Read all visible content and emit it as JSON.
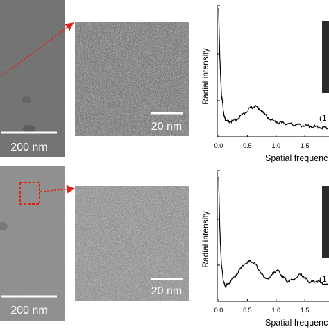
{
  "panels": [
    {
      "id": "top",
      "overview_scale": "200 nm",
      "zoom_scale": "20 nm",
      "plot": {
        "ylabel": "Radial intensity",
        "xlabel": "Spatial frequenc",
        "annotation": "(1"
      }
    },
    {
      "id": "bottom",
      "overview_scale": "200 nm",
      "zoom_scale": "20 nm",
      "plot": {
        "ylabel": "Radial intensity",
        "xlabel": "Spatial frequenc",
        "annotation": "(1"
      }
    }
  ],
  "colors": {
    "callout": "#e2231a",
    "curve": "#000000"
  },
  "chart_data": [
    {
      "type": "line",
      "ylabel": "Radial intensity",
      "xlabel": "Spatial frequenc",
      "xticks": [
        "0.0",
        "0.5",
        "1.0",
        "1.5"
      ],
      "xlim": [
        0.0,
        1.92
      ],
      "ylim": [
        0,
        1
      ],
      "series": [
        {
          "x": [
            0.0,
            0.02,
            0.05,
            0.08,
            0.1,
            0.13,
            0.18,
            0.25,
            0.35,
            0.45,
            0.55,
            0.62,
            0.7,
            0.8,
            0.9,
            1.0,
            1.1,
            1.2,
            1.3,
            1.4,
            1.5,
            1.6,
            1.7,
            1.8,
            1.9
          ],
          "values": [
            0.99,
            0.6,
            0.3,
            0.18,
            0.12,
            0.09,
            0.08,
            0.085,
            0.11,
            0.15,
            0.19,
            0.205,
            0.19,
            0.14,
            0.1,
            0.08,
            0.07,
            0.065,
            0.06,
            0.055,
            0.05,
            0.045,
            0.04,
            0.035,
            0.03
          ]
        }
      ]
    },
    {
      "type": "line",
      "ylabel": "Radial intensity",
      "xlabel": "Spatial frequenc",
      "xticks": [
        "0.0",
        "0.5",
        "1.0",
        "1.5"
      ],
      "xlim": [
        0.0,
        1.92
      ],
      "ylim": [
        0,
        1
      ],
      "series": [
        {
          "x": [
            0.0,
            0.02,
            0.05,
            0.08,
            0.1,
            0.13,
            0.18,
            0.25,
            0.35,
            0.45,
            0.55,
            0.62,
            0.7,
            0.8,
            0.9,
            0.97,
            1.05,
            1.12,
            1.2,
            1.3,
            1.4,
            1.48,
            1.55,
            1.62,
            1.7,
            1.8,
            1.9
          ],
          "values": [
            0.98,
            0.55,
            0.25,
            0.13,
            0.09,
            0.08,
            0.1,
            0.14,
            0.2,
            0.26,
            0.28,
            0.27,
            0.22,
            0.14,
            0.15,
            0.2,
            0.2,
            0.15,
            0.12,
            0.13,
            0.17,
            0.16,
            0.12,
            0.11,
            0.12,
            0.1,
            0.09
          ]
        }
      ]
    }
  ]
}
